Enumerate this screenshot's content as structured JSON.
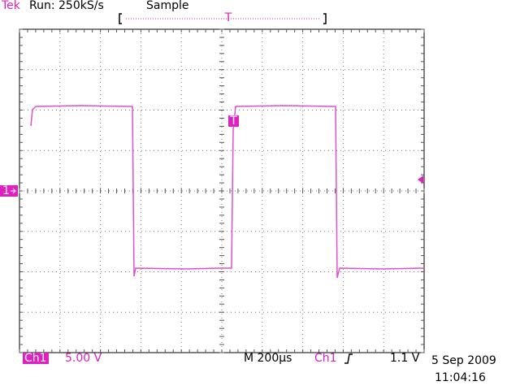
{
  "header": {
    "brand": "Tek",
    "status": "Run: 250kS/s",
    "mode": "Sample",
    "trigger_position": "T"
  },
  "markers": {
    "channel": "1",
    "trigger": "T"
  },
  "footer": {
    "channel": "Ch1",
    "scale": "5.00 V",
    "timebase": "M 200µs",
    "trigger_source": "Ch1",
    "trigger_level": "1.1 V",
    "date": "5 Sep 2009",
    "time": "11:04:16"
  }
}
